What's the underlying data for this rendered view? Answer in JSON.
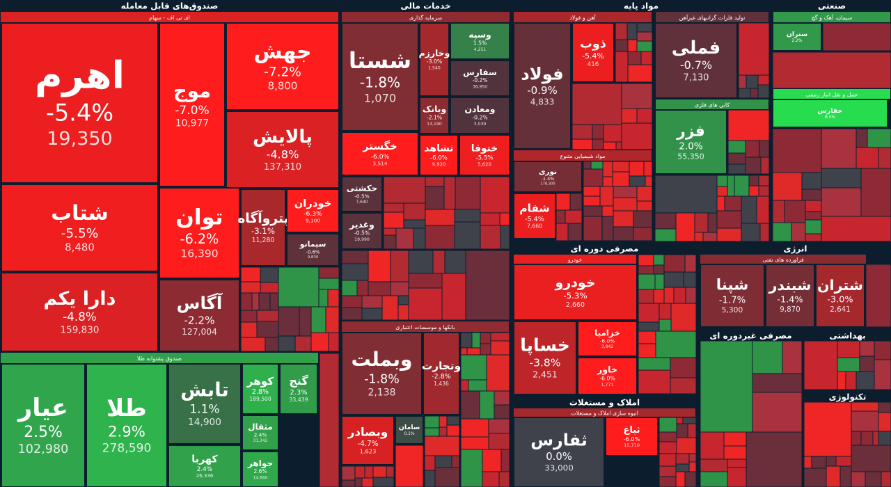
{
  "chart_data": {
    "type": "treemap",
    "sectors": [
      {
        "name": "صندوق‌های قابل معامله",
        "subsectors": [
          {
            "name": "ای تی اف - سهام",
            "tiles": [
              {
                "name": "اهرم",
                "value": -5.4,
                "value_label": "-5.4%",
                "volume": 19350,
                "volume_label": "19,350"
              },
              {
                "name": "شتاب",
                "value": -5.5,
                "value_label": "-5.5%",
                "volume": 8480,
                "volume_label": "8,480"
              },
              {
                "name": "دارا یکم",
                "value": -4.8,
                "value_label": "-4.8%",
                "volume": 159830,
                "volume_label": "159,830"
              },
              {
                "name": "موج",
                "value": -7.0,
                "value_label": "-7.0%",
                "volume": 10977,
                "volume_label": "10,977"
              },
              {
                "name": "جهش",
                "value": -7.2,
                "value_label": "-7.2%",
                "volume": 8800,
                "volume_label": "8,800"
              },
              {
                "name": "پالایش",
                "value": -4.8,
                "value_label": "-4.8%",
                "volume": 137310,
                "volume_label": "137,310"
              },
              {
                "name": "توان",
                "value": -6.2,
                "value_label": "-6.2%",
                "volume": 16390,
                "volume_label": "16,390"
              },
              {
                "name": "پتروآگاه",
                "value": -3.1,
                "value_label": "-3.1%",
                "volume": 11280,
                "volume_label": "11,280"
              },
              {
                "name": "خودران",
                "value": -6.3,
                "value_label": "-6.3%",
                "volume": 9100,
                "volume_label": "9,100"
              },
              {
                "name": "سیمانو",
                "value": -0.6,
                "value_label": "-0.6%",
                "volume": 9830,
                "volume_label": "9,830"
              },
              {
                "name": "آگاس",
                "value": -2.2,
                "value_label": "-2.2%",
                "volume": 127004,
                "volume_label": "127,004"
              }
            ]
          },
          {
            "name": "صندوق پشتوانه طلا",
            "tiles": [
              {
                "name": "عیار",
                "value": 2.5,
                "value_label": "2.5%",
                "volume": 102980,
                "volume_label": "102,980"
              },
              {
                "name": "طلا",
                "value": 2.9,
                "value_label": "2.9%",
                "volume": 278590,
                "volume_label": "278,590"
              },
              {
                "name": "تابش",
                "value": 1.1,
                "value_label": "1.1%",
                "volume": 14900,
                "volume_label": "14,900"
              },
              {
                "name": "کهربا",
                "value": 2.4,
                "value_label": "2.4%",
                "volume": 26336,
                "volume_label": "26,336"
              },
              {
                "name": "کوهر",
                "value": 2.8,
                "value_label": "2.8%",
                "volume": 189500,
                "volume_label": "189,500"
              },
              {
                "name": "گنج",
                "value": 2.3,
                "value_label": "2.3%",
                "volume": 33439,
                "volume_label": "33,439"
              },
              {
                "name": "مثقال",
                "value": 2.4,
                "value_label": "2.4%",
                "volume": 31342,
                "volume_label": "31,342"
              },
              {
                "name": "جواهر",
                "value": 2.6,
                "value_label": "2.6%",
                "volume": 14660,
                "volume_label": "14,660"
              }
            ]
          }
        ]
      },
      {
        "name": "خدمات مالی",
        "subsectors": [
          {
            "name": "سرمایه گذاری",
            "tiles": [
              {
                "name": "شستا",
                "value": -1.8,
                "value_label": "-1.8%",
                "volume": 1070,
                "volume_label": "1,070"
              },
              {
                "name": "وسپه",
                "value": 1.5,
                "value_label": "1.5%",
                "volume": 4251,
                "volume_label": "4,251"
              },
              {
                "name": "وخارزم",
                "value": -3.0,
                "value_label": "-3.0%",
                "volume": 1540,
                "volume_label": "1,540"
              },
              {
                "name": "سفارس",
                "value": -0.2,
                "value_label": "-0.2%",
                "volume": 36950,
                "volume_label": "36,950"
              },
              {
                "name": "وبانک",
                "value": -2.1,
                "value_label": "-2.1%",
                "volume": 13190,
                "volume_label": "13,190"
              },
              {
                "name": "ومعادن",
                "value": -0.2,
                "value_label": "-0.2%",
                "volume": 3039,
                "volume_label": "3,039"
              },
              {
                "name": "خگستر",
                "value": -6.0,
                "value_label": "-6.0%",
                "volume": 3514,
                "volume_label": "3,514"
              },
              {
                "name": "ثشاهد",
                "value": -6.0,
                "value_label": "-6.0%",
                "volume": 9920,
                "volume_label": "9,920"
              },
              {
                "name": "ختوقا",
                "value": -5.5,
                "value_label": "-5.5%",
                "volume": 5620,
                "volume_label": "5,620"
              },
              {
                "name": "حکشتی",
                "value": -0.5,
                "value_label": "-0.5%",
                "volume": 7640,
                "volume_label": "7,640"
              },
              {
                "name": "وغدیر",
                "value": -0.5,
                "value_label": "-0.5%",
                "volume": 19990,
                "volume_label": "19,990"
              }
            ]
          },
          {
            "name": "بانکها و موسسات اعتباری",
            "tiles": [
              {
                "name": "وبملت",
                "value": -1.8,
                "value_label": "-1.8%",
                "volume": 2138,
                "volume_label": "2,138"
              },
              {
                "name": "وتجارت",
                "value": -2.8,
                "value_label": "-2.8%",
                "volume": 1436,
                "volume_label": "1,436"
              },
              {
                "name": "وبصادر",
                "value": -4.7,
                "value_label": "-4.7%",
                "volume": 1623,
                "volume_label": "1,623"
              },
              {
                "name": "سامان",
                "value": 0.1,
                "value_label": "0.1%"
              }
            ]
          }
        ]
      },
      {
        "name": "مواد پایه",
        "subsectors": [
          {
            "name": "آهن و فولاد",
            "tiles": [
              {
                "name": "فولاد",
                "value": -0.9,
                "value_label": "-0.9%",
                "volume": 4833,
                "volume_label": "4,833"
              },
              {
                "name": "ذوب",
                "value": -5.4,
                "value_label": "-5.4%",
                "volume": 416,
                "volume_label": "416"
              }
            ]
          },
          {
            "name": "تولید فلزات گرانبهای غیرآهن",
            "tiles": [
              {
                "name": "فملی",
                "value": -0.7,
                "value_label": "-0.7%",
                "volume": 7130,
                "volume_label": "7,130"
              }
            ]
          },
          {
            "name": "کانی های فلزی",
            "tiles": [
              {
                "name": "فزر",
                "value": 2.0,
                "value_label": "2.0%",
                "volume": 55350,
                "volume_label": "55,350"
              }
            ]
          },
          {
            "name": "مواد شیمیایی متنوع",
            "tiles": [
              {
                "name": "نوری",
                "value": -1.4,
                "value_label": "-1.4%",
                "volume": 178300,
                "volume_label": "178,300"
              },
              {
                "name": "شفام",
                "value": -5.4,
                "value_label": "-5.4%",
                "volume": 7660,
                "volume_label": "7,660"
              }
            ]
          }
        ]
      },
      {
        "name": "مصرفی دوره ای",
        "subsectors": [
          {
            "name": "خودرو",
            "tiles": [
              {
                "name": "خودرو",
                "value": -5.3,
                "value_label": "-5.3%",
                "volume": 2660,
                "volume_label": "2,660"
              },
              {
                "name": "خساپا",
                "value": -3.8,
                "value_label": "-3.8%",
                "volume": 2451,
                "volume_label": "2,451"
              },
              {
                "name": "خزامیا",
                "value": -6.0,
                "value_label": "-6.0%",
                "volume": 3842,
                "volume_label": "3,842"
              },
              {
                "name": "خاور",
                "value": -6.0,
                "value_label": "-6.0%",
                "volume": 1771,
                "volume_label": "1,771"
              }
            ]
          }
        ]
      },
      {
        "name": "املاک و مستغلات",
        "subsectors": [
          {
            "name": "انبوه سازی املاک و مستغلات",
            "tiles": [
              {
                "name": "ثفارس",
                "value": 0.0,
                "value_label": "0.0%",
                "volume": 33000,
                "volume_label": "33,000"
              },
              {
                "name": "ثباغ",
                "value": -6.0,
                "value_label": "-6.0%",
                "volume": 15710,
                "volume_label": "15,710"
              }
            ]
          }
        ]
      },
      {
        "name": "انرژی",
        "subsectors": [
          {
            "name": "فراورده های نفتی",
            "tiles": [
              {
                "name": "شپنا",
                "value": -1.7,
                "value_label": "-1.7%",
                "volume": 5300,
                "volume_label": "5,300"
              },
              {
                "name": "شبندر",
                "value": -1.4,
                "value_label": "-1.4%",
                "volume": 9870,
                "volume_label": "9,870"
              },
              {
                "name": "شتران",
                "value": -3.0,
                "value_label": "-3.0%",
                "volume": 2641,
                "volume_label": "2,641"
              }
            ]
          }
        ]
      },
      {
        "name": "صنعتی",
        "subsectors": [
          {
            "name": "سیمان، آهک و گچ",
            "tiles": [
              {
                "name": "ستران",
                "value": 2.2,
                "value_label": "2.2%"
              }
            ]
          },
          {
            "name": "حمل و نقل انبار زمینی",
            "tiles": [
              {
                "name": "حفارس",
                "value": 6.0,
                "value_label": "6.0%"
              }
            ]
          }
        ]
      },
      {
        "name": "مصرفی غیردوره ای",
        "subsectors": []
      },
      {
        "name": "بهداشتی",
        "subsectors": []
      },
      {
        "name": "تکنولوژی",
        "subsectors": []
      }
    ]
  }
}
